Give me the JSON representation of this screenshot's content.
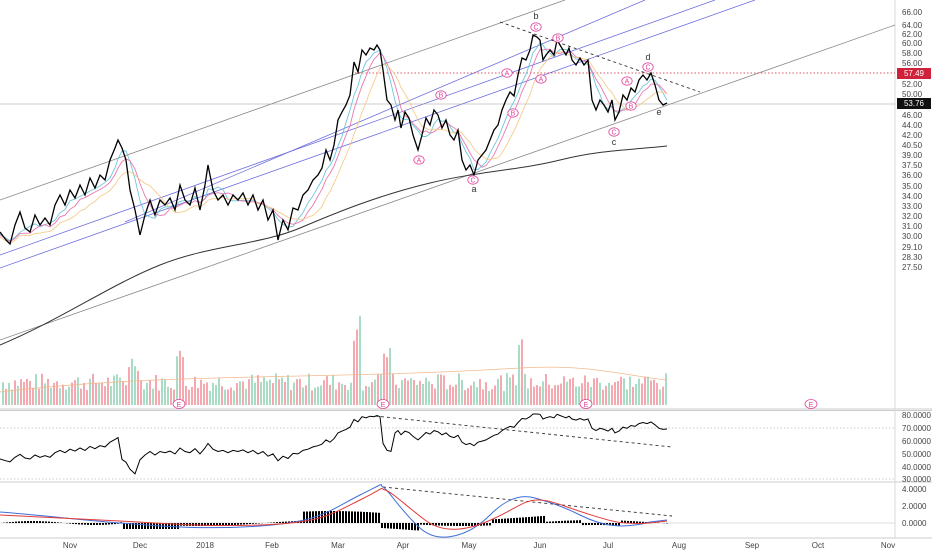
{
  "chart_data": {
    "type": "line",
    "symbol_panel": {
      "y_ticks": [
        "66.00",
        "64.00",
        "62.00",
        "60.00",
        "58.00",
        "56.00",
        "54.00",
        "52.00",
        "50.00",
        "48.00",
        "46.00",
        "44.00",
        "42.00",
        "40.50",
        "39.00",
        "37.50",
        "36.00",
        "35.00",
        "34.00",
        "33.00",
        "32.00",
        "31.00",
        "30.00",
        "29.10",
        "28.30",
        "27.50"
      ],
      "last_price": "53.76",
      "level_marker": "57.49",
      "wave_labels": [
        "a",
        "b",
        "c",
        "d",
        "e"
      ],
      "circle_labels": [
        "A",
        "B",
        "C"
      ],
      "earnings_marker": "E"
    },
    "rsi_panel": {
      "y_ticks": [
        "80.0000",
        "70.0000",
        "60.0000",
        "50.0000",
        "40.0000",
        "30.0000"
      ]
    },
    "macd_panel": {
      "y_ticks": [
        "4.0000",
        "2.0000",
        "0.0000"
      ]
    },
    "x_ticks": [
      "Nov",
      "Dec",
      "2018",
      "Feb",
      "Mar",
      "Apr",
      "May",
      "Jun",
      "Jul",
      "Aug",
      "Sep",
      "Oct",
      "Nov"
    ],
    "colors": {
      "price": "#000000",
      "ema_fast": "#5bc0de",
      "ema_mid": "#e86aa6",
      "ema_slow": "#f5c77e",
      "ma_long": "#333333",
      "channel_blue": "#6f6fe0",
      "channel_gray": "#888888",
      "vol_up": "#a8dcc4",
      "vol_down": "#f4a9b0",
      "marker": "#e0409a",
      "level_red": "#d0213b",
      "macd_line": "#3f6fd8",
      "signal_line": "#e23b3b"
    },
    "grid": false
  }
}
